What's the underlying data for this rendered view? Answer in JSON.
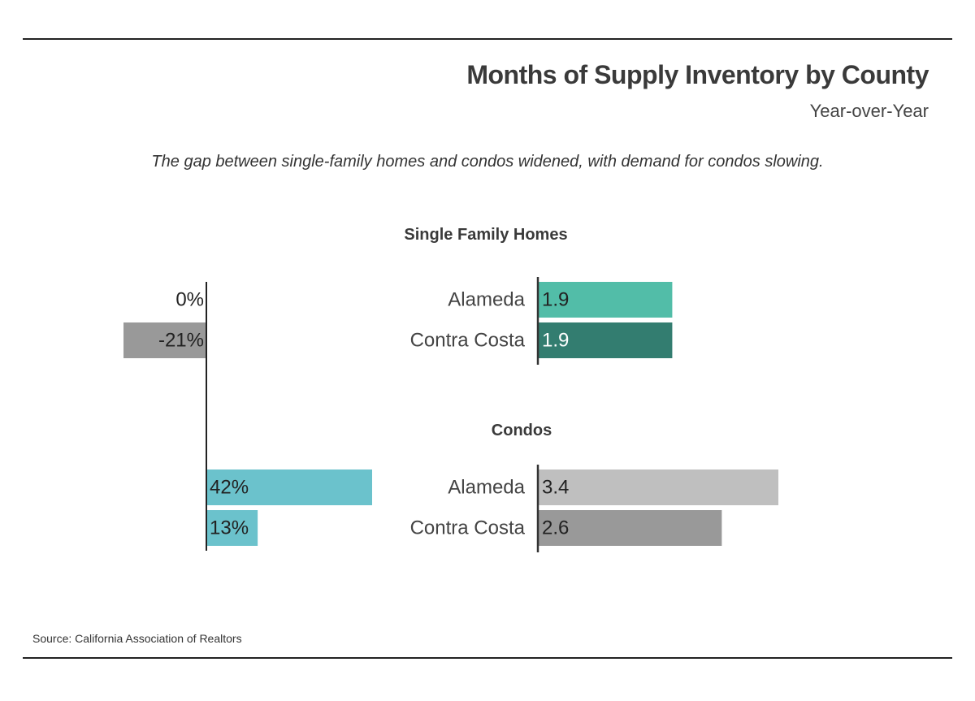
{
  "header": {
    "title": "Months of Supply Inventory by County",
    "subtitle": "Year-over-Year"
  },
  "note": "The gap between single-family homes and condos widened, with demand for condos slowing.",
  "source": "Source:  California Association of Realtors",
  "chart_data": [
    {
      "type": "bar",
      "title": "Single Family Homes",
      "orientation": "horizontal",
      "categories": [
        "Alameda",
        "Contra Costa"
      ],
      "values": [
        1.9,
        1.9
      ],
      "value_labels": [
        "1.9",
        "1.9"
      ],
      "colors": [
        "#52bda8",
        "#337d70"
      ],
      "xlim": [
        0,
        2
      ]
    },
    {
      "type": "bar",
      "title": "Condos",
      "orientation": "horizontal",
      "categories": [
        "Alameda",
        "Contra Costa"
      ],
      "values": [
        3.4,
        2.6
      ],
      "value_labels": [
        "3.4",
        "2.6"
      ],
      "colors": [
        "#bfbfbf",
        "#999999"
      ],
      "xlim": [
        0,
        3.4
      ]
    },
    {
      "type": "bar",
      "orientation": "horizontal",
      "categories": [
        "Alameda",
        "Contra Costa",
        "Alameda",
        "Contra Costa"
      ],
      "groups": [
        "Single Family Homes",
        "Single Family Homes",
        "Condos",
        "Condos"
      ],
      "values": [
        0,
        -21,
        42,
        13
      ],
      "value_labels": [
        "0%",
        "-21%",
        "42%",
        "13%"
      ],
      "colors": [
        "#999999",
        "#999999",
        "#6bc2cc",
        "#6bc2cc"
      ],
      "xlim": [
        -21,
        42
      ]
    }
  ]
}
